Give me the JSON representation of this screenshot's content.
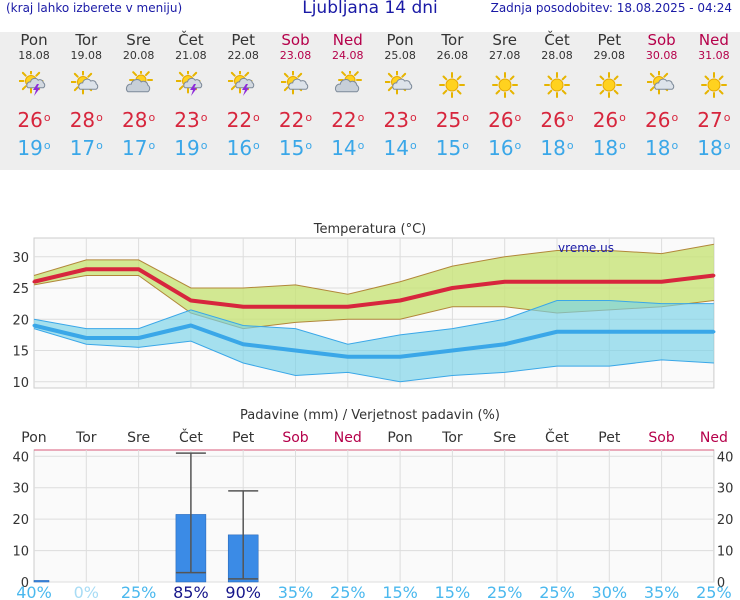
{
  "header": {
    "note": "(kraj lahko izberete v meniju)",
    "title": "Ljubljana 14 dni",
    "updated": "Zadnja posodobitev: 18.08.2025 - 04:24"
  },
  "days": [
    {
      "name": "Pon",
      "date": "18.08",
      "weekend": false,
      "icon": "sun-cloud-thunder-icon",
      "tmax": "26",
      "tmin": "19"
    },
    {
      "name": "Tor",
      "date": "19.08",
      "weekend": false,
      "icon": "sun-cloud-icon",
      "tmax": "28",
      "tmin": "17"
    },
    {
      "name": "Sre",
      "date": "20.08",
      "weekend": false,
      "icon": "cloud-sun-icon",
      "tmax": "28",
      "tmin": "17"
    },
    {
      "name": "Čet",
      "date": "21.08",
      "weekend": false,
      "icon": "sun-cloud-thunder-icon",
      "tmax": "23",
      "tmin": "19"
    },
    {
      "name": "Pet",
      "date": "22.08",
      "weekend": false,
      "icon": "sun-cloud-thunder-icon",
      "tmax": "22",
      "tmin": "16"
    },
    {
      "name": "Sob",
      "date": "23.08",
      "weekend": true,
      "icon": "sun-cloud-icon",
      "tmax": "22",
      "tmin": "15"
    },
    {
      "name": "Ned",
      "date": "24.08",
      "weekend": true,
      "icon": "cloud-sun-icon",
      "tmax": "22",
      "tmin": "14"
    },
    {
      "name": "Pon",
      "date": "25.08",
      "weekend": false,
      "icon": "sun-cloud-icon",
      "tmax": "23",
      "tmin": "14"
    },
    {
      "name": "Tor",
      "date": "26.08",
      "weekend": false,
      "icon": "sun-icon",
      "tmax": "25",
      "tmin": "15"
    },
    {
      "name": "Sre",
      "date": "27.08",
      "weekend": false,
      "icon": "sun-icon",
      "tmax": "26",
      "tmin": "16"
    },
    {
      "name": "Čet",
      "date": "28.08",
      "weekend": false,
      "icon": "sun-icon",
      "tmax": "26",
      "tmin": "18"
    },
    {
      "name": "Pet",
      "date": "29.08",
      "weekend": false,
      "icon": "sun-icon",
      "tmax": "26",
      "tmin": "18"
    },
    {
      "name": "Sob",
      "date": "30.08",
      "weekend": true,
      "icon": "sun-cloud-icon",
      "tmax": "26",
      "tmin": "18"
    },
    {
      "name": "Ned",
      "date": "31.08",
      "weekend": true,
      "icon": "sun-icon",
      "tmax": "27",
      "tmin": "18"
    }
  ],
  "colors": {
    "tmax": "#d7263d",
    "tmin": "#3aa7e8",
    "weekend": "#b5004a",
    "title": "#1a1aa6",
    "warm_band": "#d8eba0",
    "cold_band": "#a6e0ee",
    "precip_bar": "#3b8be6"
  },
  "chart_data": [
    {
      "type": "line",
      "title": "Temperatura (°C)",
      "watermark": "vreme.us",
      "ylim": [
        9,
        33
      ],
      "yticks": [
        10,
        15,
        20,
        25,
        30
      ],
      "grid": true,
      "x": [
        "18.08",
        "19.08",
        "20.08",
        "21.08",
        "22.08",
        "23.08",
        "24.08",
        "25.08",
        "26.08",
        "27.08",
        "28.08",
        "29.08",
        "30.08",
        "31.08"
      ],
      "series": [
        {
          "values": [
            26,
            28,
            28,
            23,
            22,
            22,
            22,
            23,
            25,
            26,
            26,
            26,
            26,
            27
          ]
        },
        {
          "values": [
            19,
            17,
            17,
            19,
            16,
            15,
            14,
            14,
            15,
            16,
            18,
            18,
            18,
            18
          ]
        },
        {
          "values": [
            27,
            29.5,
            29.5,
            25,
            25,
            25.5,
            24,
            26,
            28.5,
            30,
            31,
            31,
            30.5,
            32
          ]
        },
        {
          "values": [
            25.5,
            27,
            27,
            21,
            18.5,
            19.5,
            20,
            20,
            22,
            22,
            21,
            21.5,
            22,
            23
          ]
        },
        {
          "values": [
            20,
            18.5,
            18.5,
            21.5,
            19,
            18.5,
            16,
            17.5,
            18.5,
            20,
            23,
            23,
            22.5,
            22.5
          ]
        },
        {
          "values": [
            18.5,
            16,
            15.5,
            16.5,
            13,
            11,
            11.5,
            10,
            11,
            11.5,
            12.5,
            12.5,
            13.5,
            13
          ]
        }
      ]
    },
    {
      "type": "bar",
      "title": "Padavine (mm) / Verjetnost padavin (%)",
      "ylim": [
        0,
        42
      ],
      "yticks": [
        0,
        10,
        20,
        30,
        40
      ],
      "grid": true,
      "categories": [
        "Pon",
        "Tor",
        "Sre",
        "Čet",
        "Pet",
        "Sob",
        "Ned",
        "Pon",
        "Tor",
        "Sre",
        "Čet",
        "Pet",
        "Sob",
        "Ned"
      ],
      "values": [
        0.5,
        0,
        0,
        21.5,
        15,
        0,
        0,
        0,
        0,
        0,
        0,
        0,
        0,
        0
      ],
      "error_low": [
        0,
        0,
        0,
        3,
        1,
        0,
        0,
        0,
        0,
        0,
        0,
        0,
        0,
        0
      ],
      "error_high": [
        0,
        0,
        0,
        41,
        29,
        0,
        0,
        0,
        0,
        0,
        0,
        0,
        0,
        0
      ],
      "probability": [
        "40%",
        "0%",
        "25%",
        "85%",
        "90%",
        "35%",
        "25%",
        "15%",
        "15%",
        "25%",
        "25%",
        "30%",
        "35%",
        "25%"
      ],
      "probability_values": [
        40,
        0,
        25,
        85,
        90,
        35,
        25,
        15,
        15,
        25,
        25,
        30,
        35,
        25
      ]
    }
  ]
}
